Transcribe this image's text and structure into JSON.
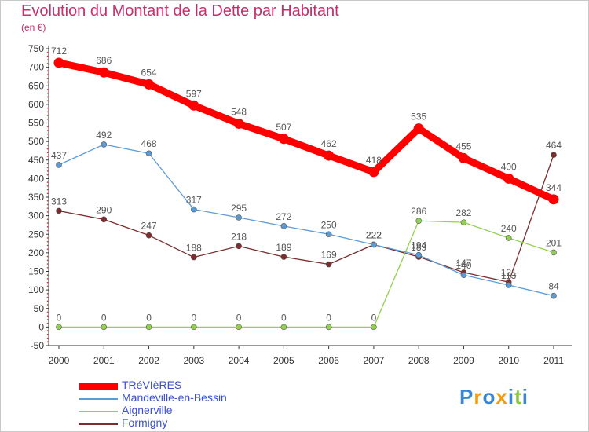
{
  "header": {
    "title": "Evolution du Montant de la Dette par Habitant",
    "unit": "(en €)"
  },
  "chart_data": {
    "type": "line",
    "title": "Evolution du Montant de la Dette par Habitant",
    "ylabel": "(en €)",
    "xlabel": "",
    "ylim": [
      -50,
      750
    ],
    "y_ticks": [
      -50,
      0,
      50,
      100,
      150,
      200,
      250,
      300,
      350,
      400,
      450,
      500,
      550,
      600,
      650,
      700,
      750
    ],
    "grid": false,
    "legend_position": "bottom-left",
    "categories": [
      "2000",
      "2001",
      "2002",
      "2003",
      "2004",
      "2005",
      "2006",
      "2007",
      "2008",
      "2009",
      "2010",
      "2011"
    ],
    "series": [
      {
        "name": "TRéVIèRES",
        "color": "#ff0000",
        "values": [
          712,
          686,
          654,
          597,
          548,
          507,
          462,
          418,
          535,
          455,
          400,
          344
        ]
      },
      {
        "name": "Mandeville-en-Bessin",
        "color": "#5b9bd5",
        "values": [
          437,
          492,
          468,
          317,
          295,
          272,
          250,
          222,
          194,
          140,
          113,
          84
        ]
      },
      {
        "name": "Aignerville",
        "color": "#92d050",
        "values": [
          0,
          0,
          0,
          0,
          0,
          0,
          0,
          0,
          286,
          282,
          240,
          201
        ]
      },
      {
        "name": "Formigny",
        "color": "#7b2c2c",
        "values": [
          313,
          290,
          247,
          188,
          218,
          189,
          169,
          222,
          189,
          147,
          121,
          464
        ]
      }
    ]
  },
  "legend": [
    {
      "label": "TRéVIèRES",
      "color": "#ff0000"
    },
    {
      "label": "Mandeville-en-Bessin",
      "color": "#5b9bd5"
    },
    {
      "label": "Aignerville",
      "color": "#92d050"
    },
    {
      "label": "Formigny",
      "color": "#7b2c2c"
    }
  ],
  "logo": {
    "letters": [
      "P",
      "r",
      "o",
      "x",
      "i",
      "t",
      "i"
    ],
    "colors": [
      "#3a86d6",
      "#f39c12",
      "#3a86d6",
      "#f39c12",
      "#3a86d6",
      "#8cc63f",
      "#3a86d6"
    ]
  }
}
